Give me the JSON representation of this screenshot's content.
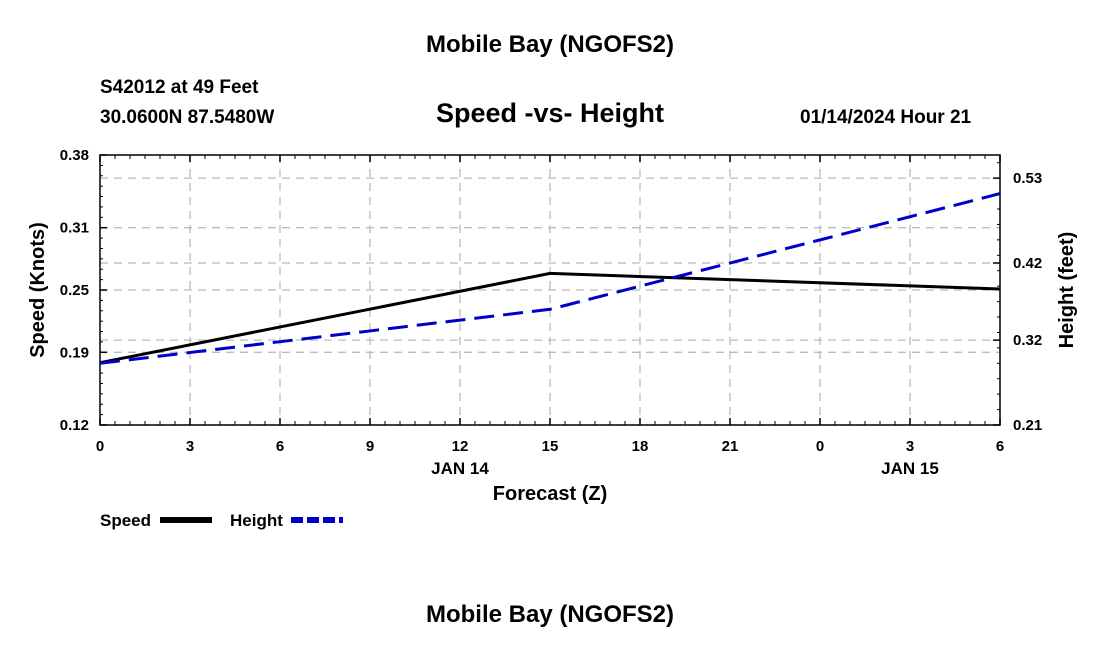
{
  "header": {
    "title": "Mobile Bay (NGOFS2)",
    "station": "S42012 at 49 Feet",
    "coords": "30.0600N  87.5480W",
    "subtitle": "Speed -vs- Height",
    "datetime": "01/14/2024 Hour 21"
  },
  "footer": {
    "title": "Mobile Bay (NGOFS2)"
  },
  "legend": {
    "speed_label": "Speed",
    "height_label": "Height"
  },
  "colors": {
    "speed": "#000000",
    "height": "#0000cc",
    "grid": "#bbbbbb"
  },
  "chart_data": {
    "type": "line",
    "title": "Speed -vs- Height",
    "xlabel": "Forecast (Z)",
    "ylabel": "Speed (Knots)",
    "y2label": "Height (feet)",
    "x_ticks": [
      "0",
      "3",
      "6",
      "9",
      "12",
      "15",
      "18",
      "21",
      "0",
      "3",
      "6"
    ],
    "date_labels": [
      {
        "label": "JAN 14",
        "at_tick": 4
      },
      {
        "label": "JAN 15",
        "at_tick": 9
      }
    ],
    "x": [
      0,
      15,
      30
    ],
    "xlim": [
      0,
      30
    ],
    "ylim": [
      0.12,
      0.38
    ],
    "y_ticks": [
      "0.38",
      "0.31",
      "0.25",
      "0.19",
      "0.12"
    ],
    "y2lim": [
      0.21,
      0.56
    ],
    "y2_ticks": [
      "0.53",
      "0.42",
      "0.32",
      "0.21"
    ],
    "series": [
      {
        "name": "Speed",
        "axis": "left",
        "x": [
          0,
          15,
          30
        ],
        "values": [
          0.18,
          0.266,
          0.251
        ]
      },
      {
        "name": "Height",
        "axis": "right",
        "x": [
          0,
          15,
          30
        ],
        "values": [
          0.29,
          0.36,
          0.51
        ]
      }
    ]
  }
}
